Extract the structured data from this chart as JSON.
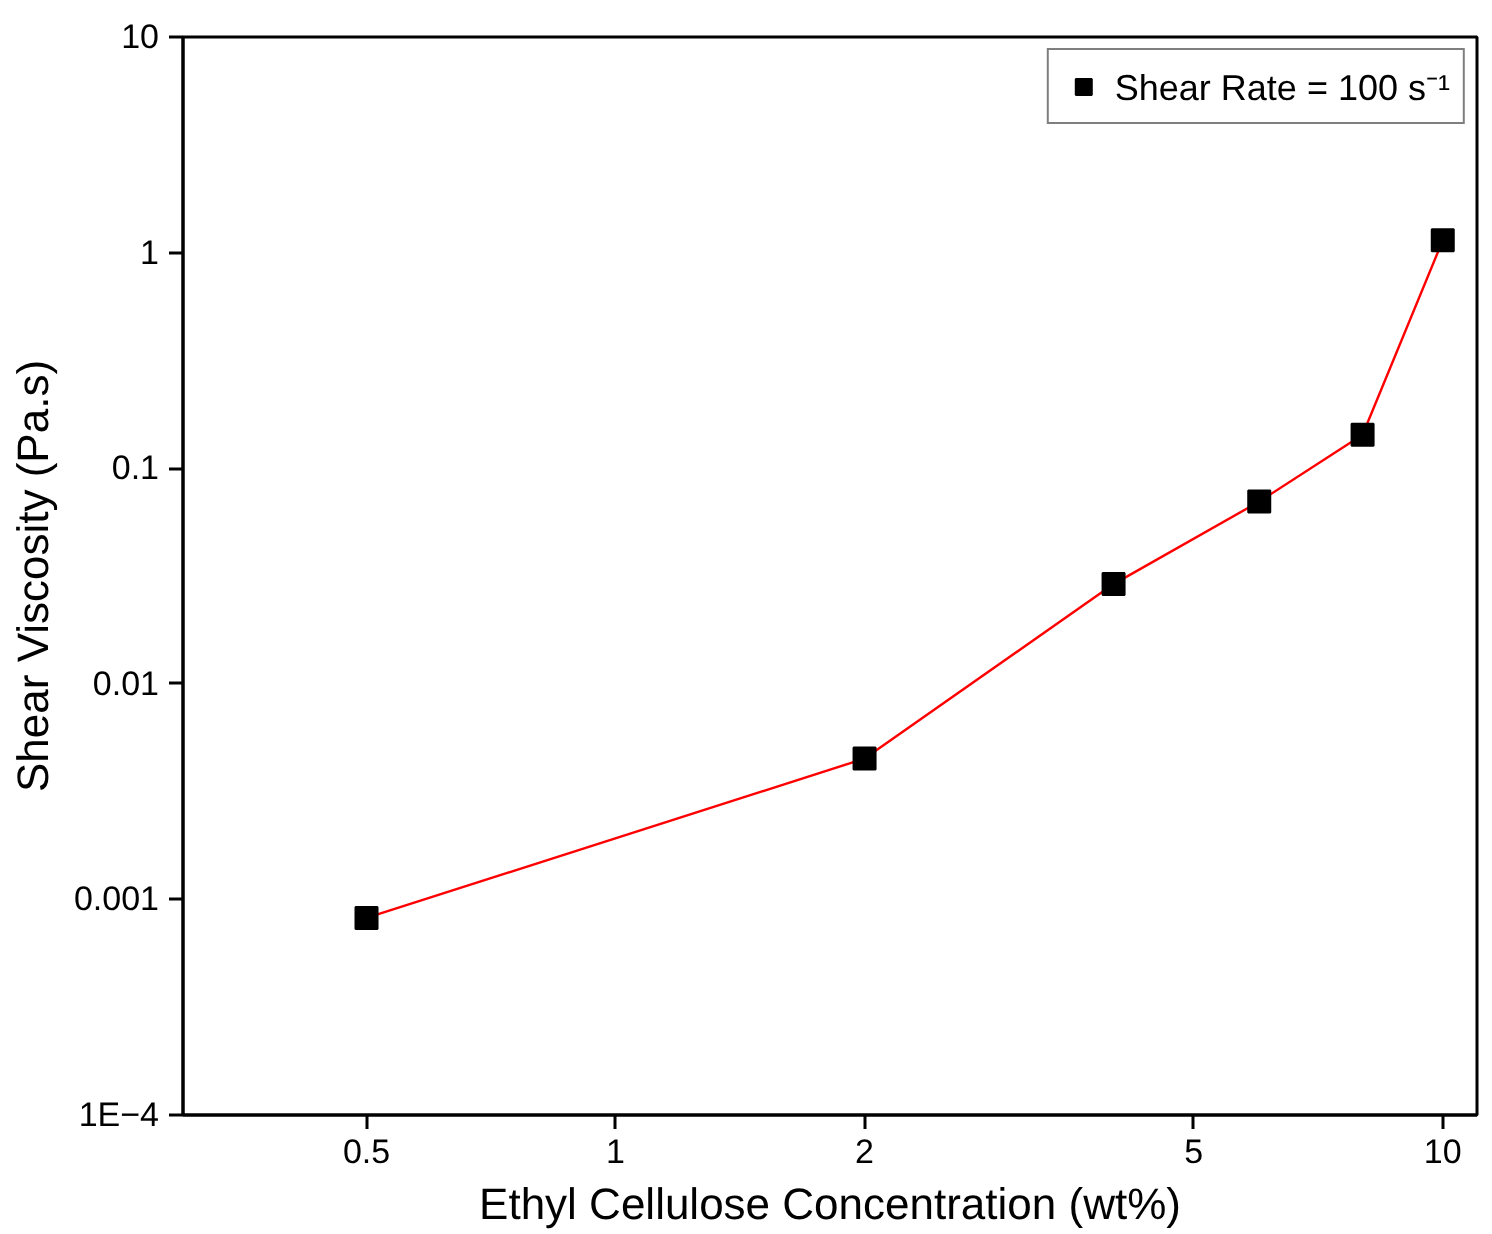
{
  "chart_data": {
    "type": "line",
    "xlabel": "Ethyl Cellulose Concentration (wt%)",
    "ylabel": "Shear Viscosity (Pa.s)",
    "log": "xy",
    "grid": false,
    "legend": "top right",
    "marker": "square",
    "xlim": [
      0.3,
      11
    ],
    "xticks": [
      0.5,
      1,
      2,
      5,
      10
    ],
    "ylim": [
      0.0001,
      10
    ],
    "yticks": [
      {
        "value": 0.0001,
        "label": "1E−4"
      },
      0.001,
      0.01,
      0.1,
      1,
      10
    ],
    "series": [
      {
        "name": "Shear Rate = 100 s⁻¹",
        "color": "#ff0000",
        "colors": [
          "#000000",
          "#000000",
          "#000000",
          "#000000",
          "#000000",
          "#000000"
        ],
        "x": [
          0.5,
          2,
          4,
          6,
          8,
          10
        ],
        "values": [
          0.00082,
          0.0045,
          0.029,
          0.07,
          0.143,
          1.14
        ]
      }
    ]
  }
}
